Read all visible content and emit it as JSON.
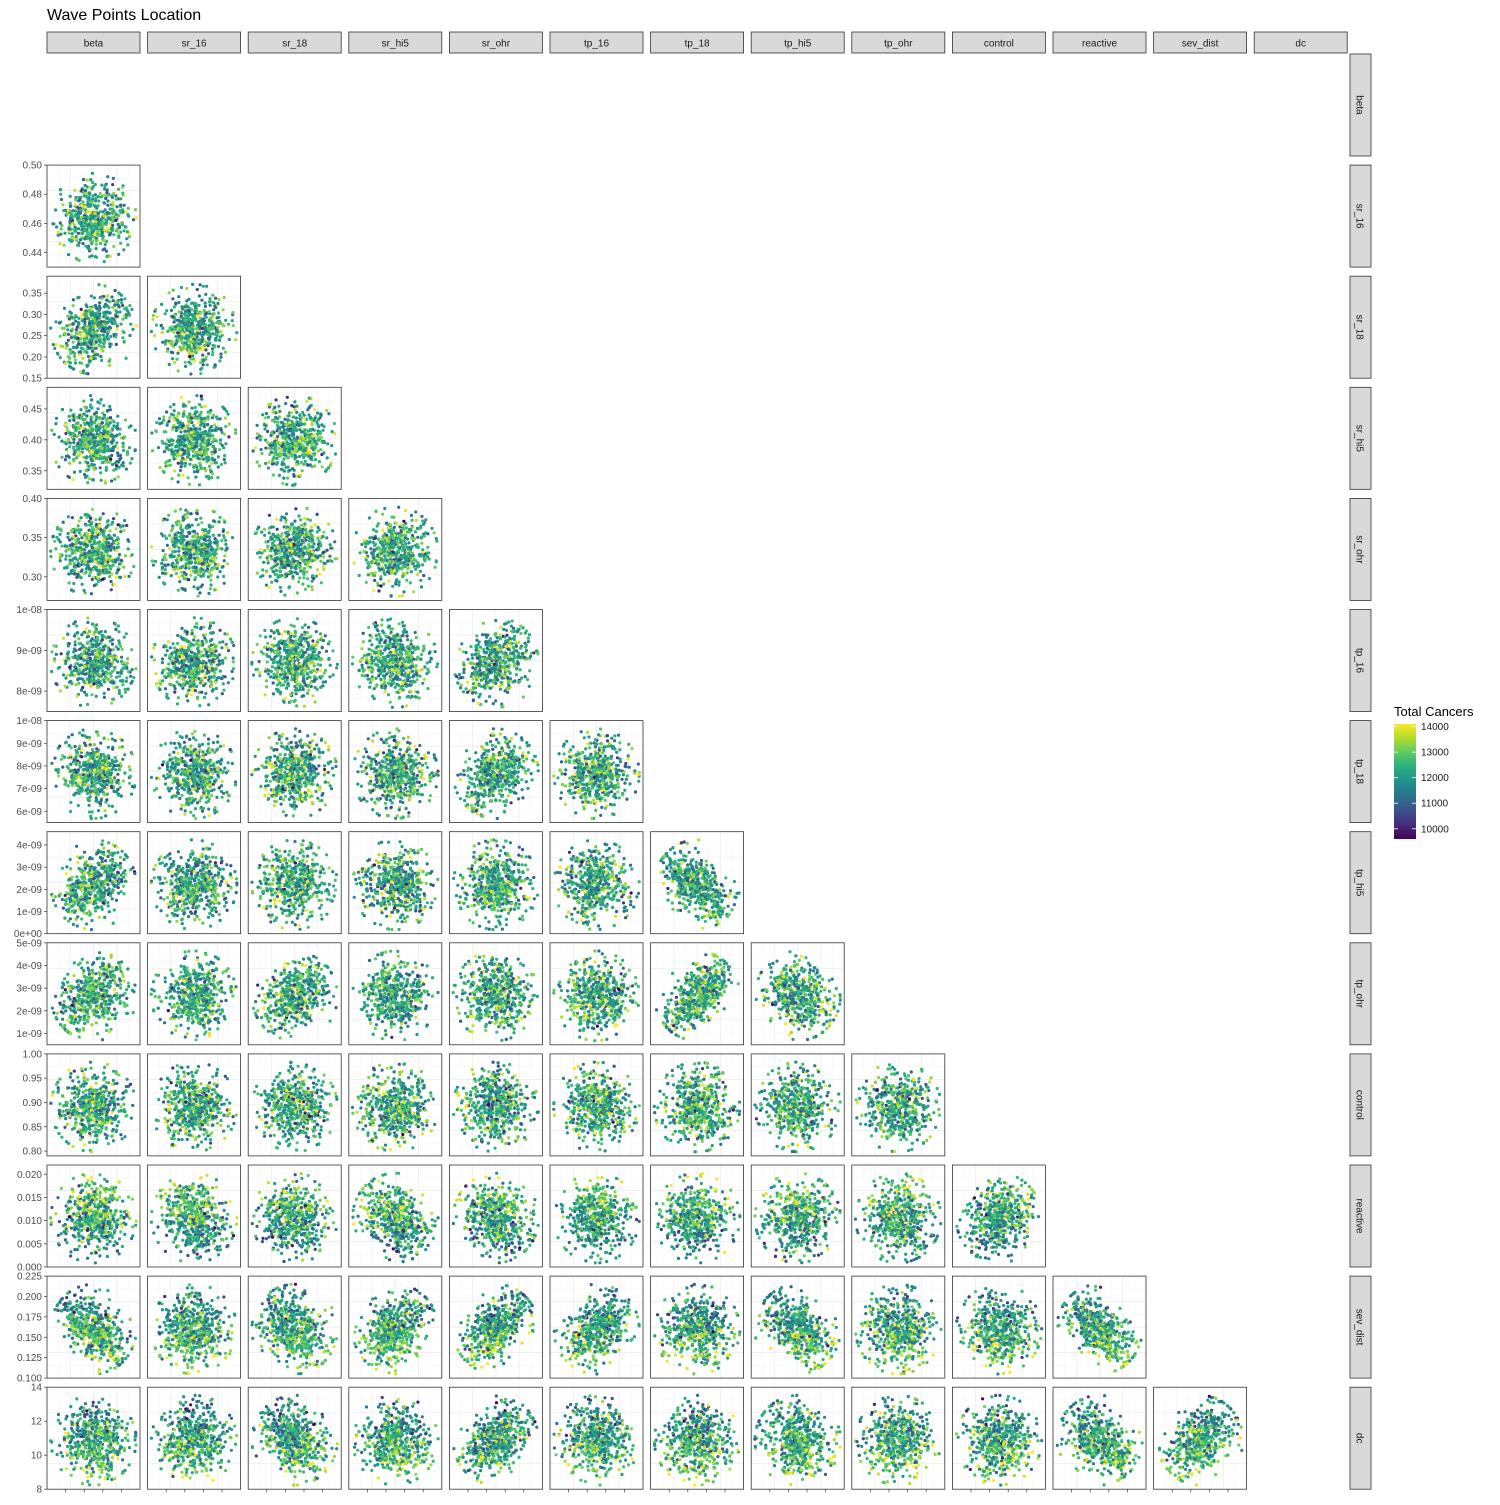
{
  "chart_data": {
    "type": "scatter",
    "title": "Wave Points Location",
    "layout": "lower-triangular pairs plot (facet grid)",
    "variables": [
      "beta",
      "sr_16",
      "sr_18",
      "sr_hi5",
      "sr_ohr",
      "tp_16",
      "tp_18",
      "tp_hi5",
      "tp_ohr",
      "control",
      "reactive",
      "sev_dist",
      "dc"
    ],
    "row_axes": {
      "sr_16": {
        "ylim": [
          0.43,
          0.5
        ],
        "ticks": [
          "0.44",
          "0.46",
          "0.48",
          "0.50"
        ],
        "tick_values": [
          0.44,
          0.46,
          0.48,
          0.5
        ]
      },
      "sr_18": {
        "ylim": [
          0.15,
          0.39
        ],
        "ticks": [
          "0.15",
          "0.20",
          "0.25",
          "0.30",
          "0.35"
        ],
        "tick_values": [
          0.15,
          0.2,
          0.25,
          0.3,
          0.35
        ]
      },
      "sr_hi5": {
        "ylim": [
          0.32,
          0.485
        ],
        "ticks": [
          "0.35",
          "0.40",
          "0.45"
        ],
        "tick_values": [
          0.35,
          0.4,
          0.45
        ]
      },
      "sr_ohr": {
        "ylim": [
          0.27,
          0.4
        ],
        "ticks": [
          "0.30",
          "0.35",
          "0.40"
        ],
        "tick_values": [
          0.3,
          0.35,
          0.4
        ]
      },
      "tp_16": {
        "ylim": [
          7.5e-09,
          1e-08
        ],
        "ticks": [
          "8e-09",
          "9e-09",
          "1e-08"
        ],
        "tick_values": [
          8e-09,
          9e-09,
          1e-08
        ]
      },
      "tp_18": {
        "ylim": [
          5.5e-09,
          1e-08
        ],
        "ticks": [
          "6e-09",
          "7e-09",
          "8e-09",
          "9e-09",
          "1e-08"
        ],
        "tick_values": [
          6e-09,
          7e-09,
          8e-09,
          9e-09,
          1e-08
        ]
      },
      "tp_hi5": {
        "ylim": [
          0,
          4.6e-09
        ],
        "ticks": [
          "0e+00",
          "1e-09",
          "2e-09",
          "3e-09",
          "4e-09"
        ],
        "tick_values": [
          0,
          1e-09,
          2e-09,
          3e-09,
          4e-09
        ]
      },
      "tp_ohr": {
        "ylim": [
          5e-10,
          5e-09
        ],
        "ticks": [
          "1e-09",
          "2e-09",
          "3e-09",
          "4e-09",
          "5e-09"
        ],
        "tick_values": [
          1e-09,
          2e-09,
          3e-09,
          4e-09,
          5e-09
        ]
      },
      "control": {
        "ylim": [
          0.79,
          1.0
        ],
        "ticks": [
          "0.80",
          "0.85",
          "0.90",
          "0.95",
          "1.00"
        ],
        "tick_values": [
          0.8,
          0.85,
          0.9,
          0.95,
          1.0
        ]
      },
      "reactive": {
        "ylim": [
          0,
          0.022
        ],
        "ticks": [
          "0.000",
          "0.005",
          "0.010",
          "0.015",
          "0.020"
        ],
        "tick_values": [
          0,
          0.005,
          0.01,
          0.015,
          0.02
        ]
      },
      "sev_dist": {
        "ylim": [
          0.1,
          0.225
        ],
        "ticks": [
          "0.100",
          "0.125",
          "0.150",
          "0.175",
          "0.200",
          "0.225"
        ],
        "tick_values": [
          0.1,
          0.125,
          0.15,
          0.175,
          0.2,
          0.225
        ]
      },
      "dc": {
        "ylim": [
          8,
          14
        ],
        "ticks": [
          "8",
          "10",
          "12",
          "14"
        ],
        "tick_values": [
          8,
          10,
          12,
          14
        ]
      }
    },
    "point_clouds": {
      "point_count_per_panel": 500,
      "correlations": {
        "sr_18|beta": 0.4,
        "sr_hi5|beta": -0.2,
        "sr_ohr|sr_hi5": 0.05,
        "tp_16|sr_ohr": 0.25,
        "tp_18|sr_ohr": 0.3,
        "tp_hi5|beta": 0.4,
        "tp_hi5|tp_18": -0.5,
        "tp_ohr|beta": 0.3,
        "tp_ohr|sr_18": 0.4,
        "tp_ohr|tp_18": 0.6,
        "tp_ohr|tp_hi5": -0.3,
        "reactive|sr_16": -0.2,
        "reactive|sr_hi5": -0.3,
        "reactive|sr_ohr": -0.2,
        "reactive|control": 0.3,
        "sev_dist|beta": -0.5,
        "sev_dist|sr_18": -0.3,
        "sev_dist|sr_hi5": 0.4,
        "sev_dist|sr_ohr": 0.5,
        "sev_dist|tp_16": 0.4,
        "sev_dist|tp_hi5": -0.5,
        "sev_dist|reactive": -0.6,
        "dc|sr_18": -0.3,
        "dc|sr_ohr": 0.5,
        "dc|tp_hi5": -0.2,
        "dc|reactive": -0.5,
        "dc|sev_dist": 0.5
      }
    },
    "legend": {
      "title": "Total Cancers",
      "placement": "right",
      "ticks": [
        "14000",
        "13000",
        "12000",
        "11000",
        "10000"
      ],
      "tick_values": [
        14000,
        13000,
        12000,
        11000,
        10000
      ],
      "range": [
        9600,
        14100
      ],
      "colormap": "viridis"
    },
    "palette": [
      "#440154",
      "#472d7b",
      "#3b528b",
      "#2c728e",
      "#21918c",
      "#28ae80",
      "#5ec962",
      "#addc30",
      "#fde725"
    ],
    "colors": {
      "strip_fill": "#d9d9d9",
      "strip_border": "#333333",
      "panel_border": "#333333",
      "grid_major": "#ebebeb",
      "grid_minor": "#f5f5f5",
      "axis_text": "#4d4d4d"
    },
    "grid": true
  }
}
